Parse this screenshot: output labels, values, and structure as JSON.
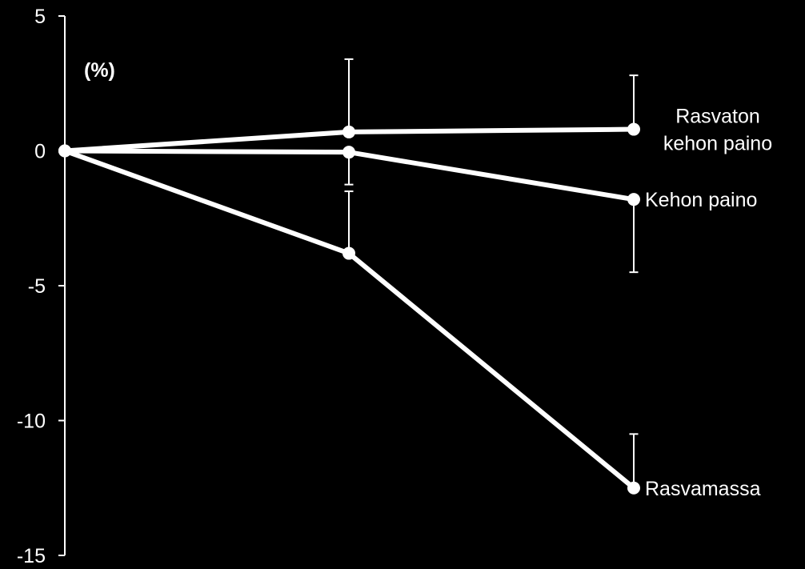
{
  "chart_data": {
    "type": "line",
    "title": "",
    "xlabel": "",
    "ylabel": "",
    "unit_label": "(%)",
    "x": [
      0,
      1,
      2
    ],
    "ylim": [
      -15,
      5
    ],
    "yticks": [
      5,
      0,
      -5,
      -10,
      -15
    ],
    "grid": false,
    "legend": "none",
    "colors": {
      "background": "#000000",
      "foreground": "#ffffff"
    },
    "series": [
      {
        "name": "Rasvaton kehon paino",
        "label_lines": [
          "Rasvaton",
          "kehon paino"
        ],
        "values": [
          0,
          0.7,
          0.8
        ],
        "error_upper": [
          null,
          2.7,
          2.0
        ],
        "error_lower": [
          null,
          null,
          null
        ]
      },
      {
        "name": "Kehon paino",
        "label_lines": [
          "Kehon paino"
        ],
        "values": [
          0,
          -0.05,
          -1.8
        ],
        "error_upper": [
          null,
          null,
          null
        ],
        "error_lower": [
          null,
          -1.2,
          -2.7
        ]
      },
      {
        "name": "Rasvamassa",
        "label_lines": [
          "Rasvamassa"
        ],
        "values": [
          0,
          -3.8,
          -12.5
        ],
        "error_upper": [
          null,
          2.3,
          2.0
        ],
        "error_lower": [
          null,
          null,
          null
        ]
      }
    ]
  }
}
